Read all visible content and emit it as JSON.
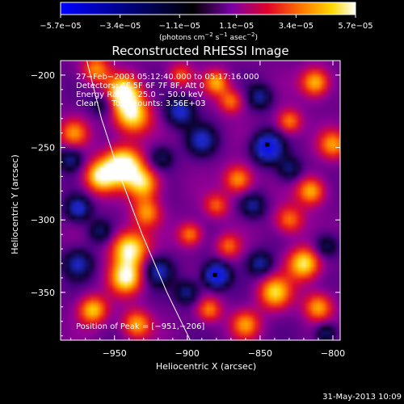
{
  "chart_data": {
    "type": "heatmap",
    "title": "Reconstructed RHESSI Image",
    "xlabel": "Heliocentric X (arcsec)",
    "ylabel": "Heliocentric Y (arcsec)",
    "xlim": [
      -987,
      -795
    ],
    "ylim": [
      -383,
      -190
    ],
    "x_ticks": [
      {
        "value": -950,
        "label": "−950"
      },
      {
        "value": -900,
        "label": "−900"
      },
      {
        "value": -850,
        "label": "−850"
      },
      {
        "value": -800,
        "label": "−800"
      }
    ],
    "y_ticks": [
      {
        "value": -200,
        "label": "−200"
      },
      {
        "value": -250,
        "label": "−250"
      },
      {
        "value": -300,
        "label": "−300"
      },
      {
        "value": -350,
        "label": "−350"
      }
    ],
    "colorbar": {
      "vmin": -5.7e-05,
      "vmax": 5.7e-05,
      "tick_values": [
        -5.7e-05,
        -3.4e-05,
        -1.1e-05,
        1.1e-05,
        3.4e-05,
        5.7e-05
      ],
      "tick_labels": [
        "−5.7e−05",
        "−3.4e−05",
        "−1.1e−05",
        "1.1e−05",
        "3.4e−05",
        "5.7e−05"
      ],
      "units_html": "(photons cm<tspan baseline-shift=\"super\" font-size=\"7\">−2</tspan> s<tspan baseline-shift=\"super\" font-size=\"7\">−1</tspan> asec<tspan baseline-shift=\"super\" font-size=\"7\">−2</tspan>)"
    },
    "annotations": [
      "27−Feb−2003 05:12:40.000 to 05:17:16.000",
      "Detectors: 4F 5F 6F 7F 8F, Att 0",
      "Energy Range: 25.0 − 50.0 keV",
      "Clean     Total counts: 3.56E+03"
    ],
    "peak_text": "Position of Peak = [−951,−206]",
    "limb_curve": [
      [
        -969,
        -190
      ],
      [
        -959,
        -230
      ],
      [
        -946,
        -270
      ],
      [
        -931,
        -310
      ],
      [
        -914,
        -350
      ],
      [
        -898,
        -383
      ]
    ],
    "sources": [
      {
        "x": -963,
        "y": -196,
        "amp": 3.2e-05,
        "s": 7
      },
      {
        "x": -944,
        "y": -212,
        "amp": 5.2e-05,
        "s": 8
      },
      {
        "x": -938,
        "y": -228,
        "amp": 4.5e-05,
        "s": 9
      },
      {
        "x": -944,
        "y": -262,
        "amp": 5.7e-05,
        "s": 9
      },
      {
        "x": -960,
        "y": -270,
        "amp": 4.5e-05,
        "s": 8
      },
      {
        "x": -930,
        "y": -275,
        "amp": 4e-05,
        "s": 8
      },
      {
        "x": -928,
        "y": -295,
        "amp": 3.2e-05,
        "s": 7
      },
      {
        "x": -940,
        "y": -320,
        "amp": 5e-05,
        "s": 9
      },
      {
        "x": -942,
        "y": -340,
        "amp": 4.5e-05,
        "s": 8
      },
      {
        "x": -965,
        "y": -362,
        "amp": 4e-05,
        "s": 7
      },
      {
        "x": -935,
        "y": -372,
        "amp": 3.6e-05,
        "s": 7
      },
      {
        "x": -978,
        "y": -240,
        "amp": 3e-05,
        "s": 7
      },
      {
        "x": -880,
        "y": -205,
        "amp": 3.5e-05,
        "s": 6
      },
      {
        "x": -870,
        "y": -218,
        "amp": 3e-05,
        "s": 6
      },
      {
        "x": -905,
        "y": -200,
        "amp": 2.5e-05,
        "s": 6
      },
      {
        "x": -865,
        "y": -272,
        "amp": 3.6e-05,
        "s": 7
      },
      {
        "x": -880,
        "y": -290,
        "amp": 2.6e-05,
        "s": 6
      },
      {
        "x": -898,
        "y": -310,
        "amp": 3.2e-05,
        "s": 6
      },
      {
        "x": -872,
        "y": -318,
        "amp": 2.6e-05,
        "s": 6
      },
      {
        "x": -812,
        "y": -205,
        "amp": 4e-05,
        "s": 7
      },
      {
        "x": -830,
        "y": -232,
        "amp": 3.2e-05,
        "s": 6
      },
      {
        "x": -800,
        "y": -248,
        "amp": 3.2e-05,
        "s": 7
      },
      {
        "x": -815,
        "y": -280,
        "amp": 3.8e-05,
        "s": 7
      },
      {
        "x": -830,
        "y": -300,
        "amp": 3e-05,
        "s": 7
      },
      {
        "x": -820,
        "y": -330,
        "amp": 4.5e-05,
        "s": 8
      },
      {
        "x": -840,
        "y": -350,
        "amp": 4e-05,
        "s": 8
      },
      {
        "x": -810,
        "y": -360,
        "amp": 3.6e-05,
        "s": 7
      },
      {
        "x": -860,
        "y": -372,
        "amp": 3.2e-05,
        "s": 7
      },
      {
        "x": -885,
        "y": -362,
        "amp": 3e-05,
        "s": 6
      },
      {
        "x": -845,
        "y": -250,
        "amp": -5e-05,
        "s": 7
      },
      {
        "x": -880,
        "y": -338,
        "amp": -5.2e-05,
        "s": 6
      },
      {
        "x": -905,
        "y": -225,
        "amp": -3.4e-05,
        "s": 7
      },
      {
        "x": -890,
        "y": -245,
        "amp": -3e-05,
        "s": 7
      },
      {
        "x": -920,
        "y": -335,
        "amp": -3e-05,
        "s": 7
      },
      {
        "x": -975,
        "y": -292,
        "amp": -3.4e-05,
        "s": 6
      },
      {
        "x": -975,
        "y": -330,
        "amp": -3e-05,
        "s": 7
      },
      {
        "x": -980,
        "y": -258,
        "amp": -2.6e-05,
        "s": 6
      },
      {
        "x": -850,
        "y": -215,
        "amp": -2.6e-05,
        "s": 6
      },
      {
        "x": -830,
        "y": -265,
        "amp": -2.4e-05,
        "s": 6
      },
      {
        "x": -855,
        "y": -290,
        "amp": -2.6e-05,
        "s": 6
      },
      {
        "x": -850,
        "y": -330,
        "amp": -2.8e-05,
        "s": 6
      },
      {
        "x": -805,
        "y": -318,
        "amp": -2.4e-05,
        "s": 6
      },
      {
        "x": -805,
        "y": -378,
        "amp": -2.6e-05,
        "s": 5
      },
      {
        "x": -900,
        "y": -350,
        "amp": -2.6e-05,
        "s": 6
      },
      {
        "x": -960,
        "y": -308,
        "amp": -2.2e-05,
        "s": 6
      },
      {
        "x": -918,
        "y": -257,
        "amp": -2.2e-05,
        "s": 6
      },
      {
        "x": -958,
        "y": -220,
        "amp": -2e-05,
        "s": 6
      }
    ],
    "peak_markers": [
      {
        "x": -845,
        "y": -248
      },
      {
        "x": -881,
        "y": -338
      }
    ],
    "grid": false
  },
  "footer": {
    "timestamp": "31-May-2013 10:09"
  }
}
